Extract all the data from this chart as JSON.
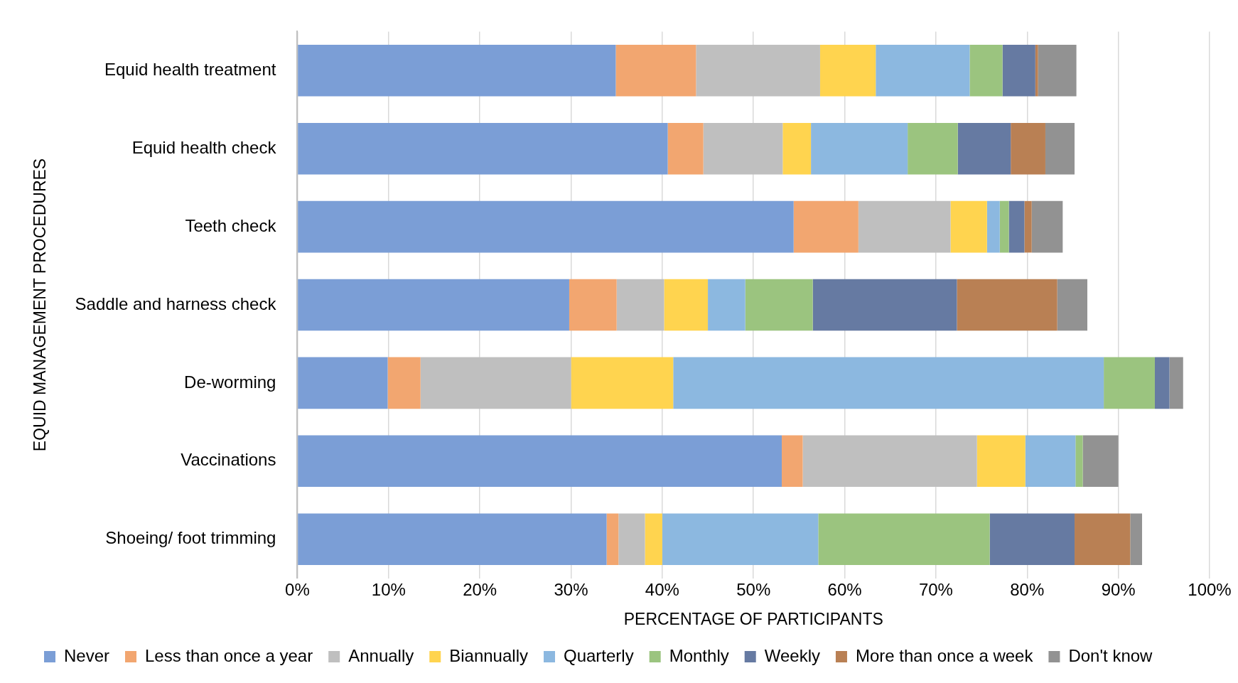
{
  "chart_data": {
    "type": "bar",
    "orientation": "horizontal",
    "stacked": true,
    "xlabel": "PERCENTAGE OF PARTICIPANTS",
    "ylabel": "EQUID MANAGEMENT PROCEDURES",
    "categories": [
      "Equid health treatment",
      "Equid health check",
      "Teeth check",
      "Saddle and harness check",
      "De-worming",
      "Vaccinations",
      "Shoeing/ foot trimming"
    ],
    "series": [
      {
        "name": "Never",
        "color": "#7b9ed6",
        "values": [
          34.9,
          40.6,
          54.4,
          29.8,
          9.9,
          53.1,
          33.9
        ]
      },
      {
        "name": "Less than once a year",
        "color": "#f2a670",
        "values": [
          8.8,
          3.9,
          7.1,
          5.2,
          3.6,
          2.3,
          1.3
        ]
      },
      {
        "name": "Annually",
        "color": "#bfbfbf",
        "values": [
          13.6,
          8.7,
          10.1,
          5.2,
          16.5,
          19.1,
          2.9
        ]
      },
      {
        "name": "Biannually",
        "color": "#ffd44f",
        "values": [
          6.1,
          3.1,
          4.0,
          4.8,
          11.2,
          5.3,
          1.9
        ]
      },
      {
        "name": "Quarterly",
        "color": "#8cb8e0",
        "values": [
          10.3,
          10.6,
          1.4,
          4.1,
          47.2,
          5.5,
          17.1
        ]
      },
      {
        "name": "Monthly",
        "color": "#9bc47f",
        "values": [
          3.6,
          5.5,
          1.0,
          7.4,
          5.6,
          0.8,
          18.8
        ]
      },
      {
        "name": "Weekly",
        "color": "#667aa2",
        "values": [
          3.6,
          5.8,
          1.7,
          15.8,
          1.6,
          0,
          9.3
        ]
      },
      {
        "name": "More than once a week",
        "color": "#b98054",
        "values": [
          0.3,
          3.8,
          0.8,
          11.0,
          0,
          0,
          6.1
        ]
      },
      {
        "name": "Don't know",
        "color": "#929292",
        "values": [
          4.2,
          3.2,
          3.4,
          3.3,
          1.5,
          3.9,
          1.3
        ]
      }
    ],
    "xlim": [
      0,
      100
    ],
    "xticks": [
      {
        "value": 0,
        "label": "0%"
      },
      {
        "value": 10,
        "label": "10%"
      },
      {
        "value": 20,
        "label": "20%"
      },
      {
        "value": 30,
        "label": "30%"
      },
      {
        "value": 40,
        "label": "40%"
      },
      {
        "value": 50,
        "label": "50%"
      },
      {
        "value": 60,
        "label": "60%"
      },
      {
        "value": 70,
        "label": "70%"
      },
      {
        "value": 80,
        "label": "80%"
      },
      {
        "value": 90,
        "label": "90%"
      },
      {
        "value": 100,
        "label": "100%"
      }
    ],
    "grid": "x",
    "legend": "bottom"
  }
}
